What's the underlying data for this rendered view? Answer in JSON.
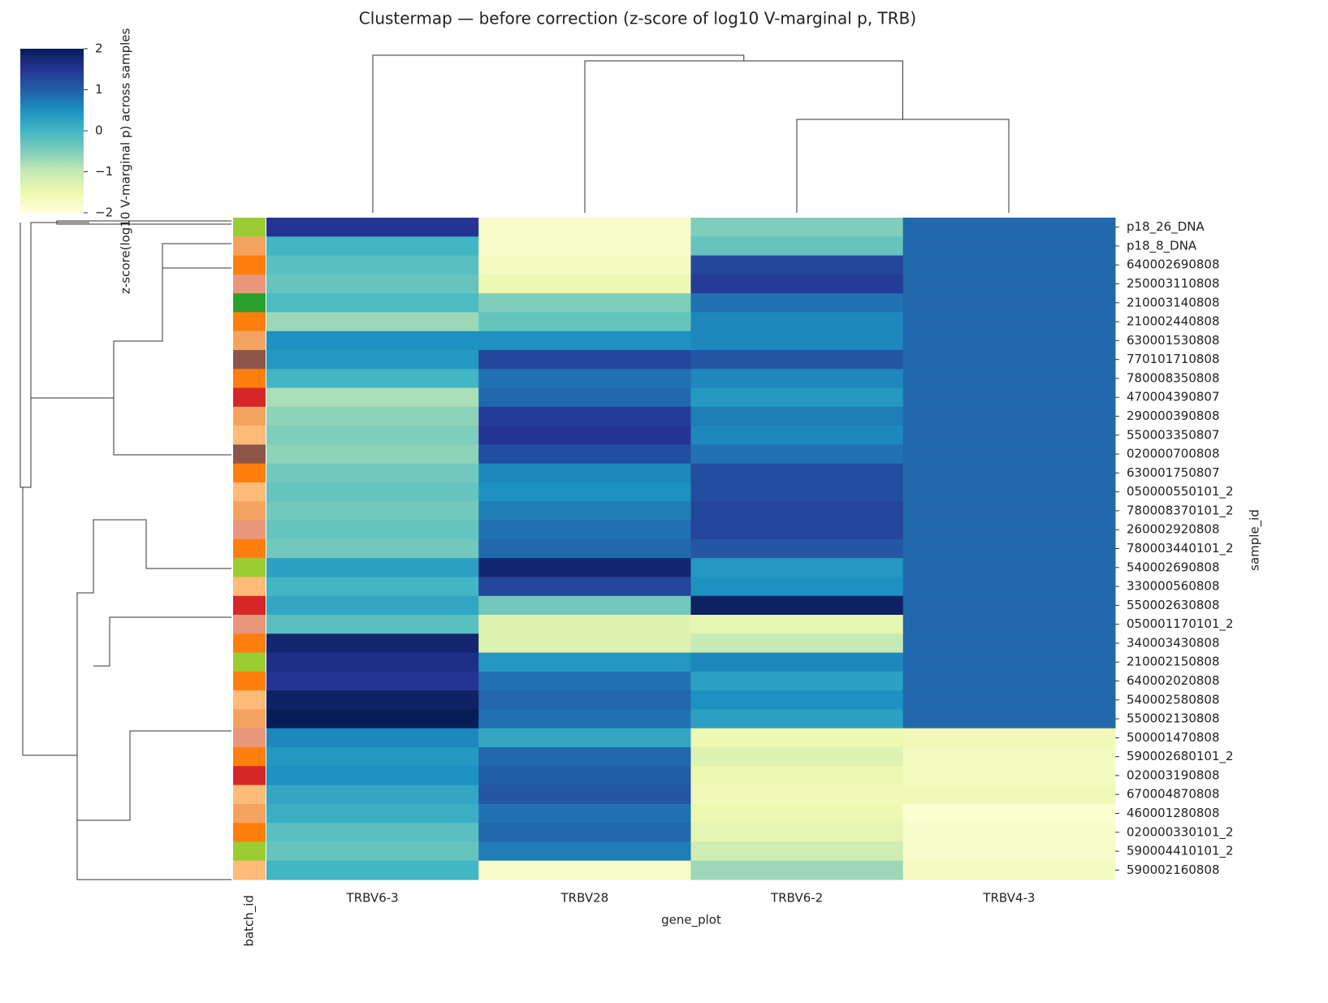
{
  "chart_data": {
    "type": "heatmap",
    "title": "Clustermap — before correction (z-score of log10 V-marginal p, TRB)",
    "x_label": "gene_plot",
    "y_label": "sample_id",
    "annotation_label": "batch_id",
    "colorbar_label": "z-score(log10 V-marginal p) across samples",
    "colormap": "YlGnBu",
    "clim": [
      -2,
      2
    ],
    "cticks": [
      {
        "value": -2,
        "label": "−2"
      },
      {
        "value": -1,
        "label": "−1"
      },
      0,
      1,
      2
    ],
    "columns": [
      "TRBV6-3",
      "TRBV28",
      "TRBV6-2",
      "TRBV4-3"
    ],
    "rows": [
      "p18_26_DNA",
      "p18_8_DNA",
      "640002690808",
      "250003110808",
      "210003140808",
      "210002440808",
      "630001530808",
      "770101710808",
      "780008350808",
      "470004390807",
      "290000390808",
      "550003350807",
      "020000700808",
      "630001750807",
      "050000550101_2",
      "780008370101_2",
      "260002920808",
      "780003440101_2",
      "540002690808",
      "330000560808",
      "550002630808",
      "050001170101_2",
      "340003430808",
      "210002150808",
      "640002020808",
      "540002580808",
      "550002130808",
      "500001470808",
      "590002680101_2",
      "020003190808",
      "670004870808",
      "460001280808",
      "020000330101_2",
      "590004410101_2",
      "590002160808"
    ],
    "values": [
      [
        1.5,
        -1.8,
        -0.5,
        0.9
      ],
      [
        0.0,
        -1.8,
        -0.3,
        0.9
      ],
      [
        -0.2,
        -1.7,
        1.3,
        0.9
      ],
      [
        -0.3,
        -1.5,
        1.4,
        0.9
      ],
      [
        -0.1,
        -0.5,
        0.8,
        0.9
      ],
      [
        -0.7,
        -0.3,
        0.6,
        0.9
      ],
      [
        0.5,
        0.5,
        0.6,
        0.9
      ],
      [
        0.4,
        1.3,
        1.1,
        0.9
      ],
      [
        0.0,
        0.8,
        0.6,
        0.9
      ],
      [
        -0.8,
        0.9,
        0.4,
        0.9
      ],
      [
        -0.6,
        1.4,
        0.7,
        0.9
      ],
      [
        -0.5,
        1.5,
        0.6,
        0.9
      ],
      [
        -0.6,
        1.2,
        0.8,
        0.9
      ],
      [
        -0.4,
        0.6,
        1.2,
        0.9
      ],
      [
        -0.3,
        0.5,
        1.2,
        0.9
      ],
      [
        -0.4,
        0.7,
        1.3,
        0.9
      ],
      [
        -0.3,
        0.8,
        1.3,
        0.9
      ],
      [
        -0.4,
        0.9,
        1.1,
        0.9
      ],
      [
        0.3,
        1.8,
        0.4,
        0.9
      ],
      [
        0.0,
        1.3,
        0.5,
        0.9
      ],
      [
        0.2,
        -0.4,
        1.9,
        0.9
      ],
      [
        -0.2,
        -1.3,
        -1.4,
        0.9
      ],
      [
        1.8,
        -1.3,
        -1.0,
        0.9
      ],
      [
        1.6,
        0.4,
        0.6,
        0.9
      ],
      [
        1.5,
        0.8,
        0.3,
        0.9
      ],
      [
        1.9,
        0.9,
        0.5,
        0.9
      ],
      [
        2.0,
        0.8,
        0.3,
        0.9
      ],
      [
        0.6,
        0.2,
        -1.5,
        -1.6
      ],
      [
        0.4,
        0.9,
        -1.3,
        -1.7
      ],
      [
        0.5,
        1.0,
        -1.5,
        -1.7
      ],
      [
        0.2,
        1.1,
        -1.6,
        -1.6
      ],
      [
        0.1,
        0.8,
        -1.5,
        -1.9
      ],
      [
        -0.2,
        0.9,
        -1.4,
        -1.8
      ],
      [
        -0.3,
        0.7,
        -1.1,
        -1.8
      ],
      [
        0.0,
        -1.8,
        -0.7,
        -1.7
      ]
    ],
    "batch_colors": [
      "#9acd32",
      "#f4a460",
      "#ff7f0e",
      "#e9967a",
      "#2ca02c",
      "#ff7f0e",
      "#f4a460",
      "#8c564b",
      "#ff7f0e",
      "#d62728",
      "#f4a460",
      "#ffbb78",
      "#8c564b",
      "#ff7f0e",
      "#ffbb78",
      "#f4a460",
      "#e9967a",
      "#ff7f0e",
      "#9acd32",
      "#ffbb78",
      "#d62728",
      "#e9967a",
      "#ff7f0e",
      "#9acd32",
      "#ff7f0e",
      "#ffbb78",
      "#f4a460",
      "#e9967a",
      "#ff7f0e",
      "#d62728",
      "#ffbb78",
      "#f4a460",
      "#ff7f0e",
      "#9acd32",
      "#ffbb78"
    ]
  }
}
